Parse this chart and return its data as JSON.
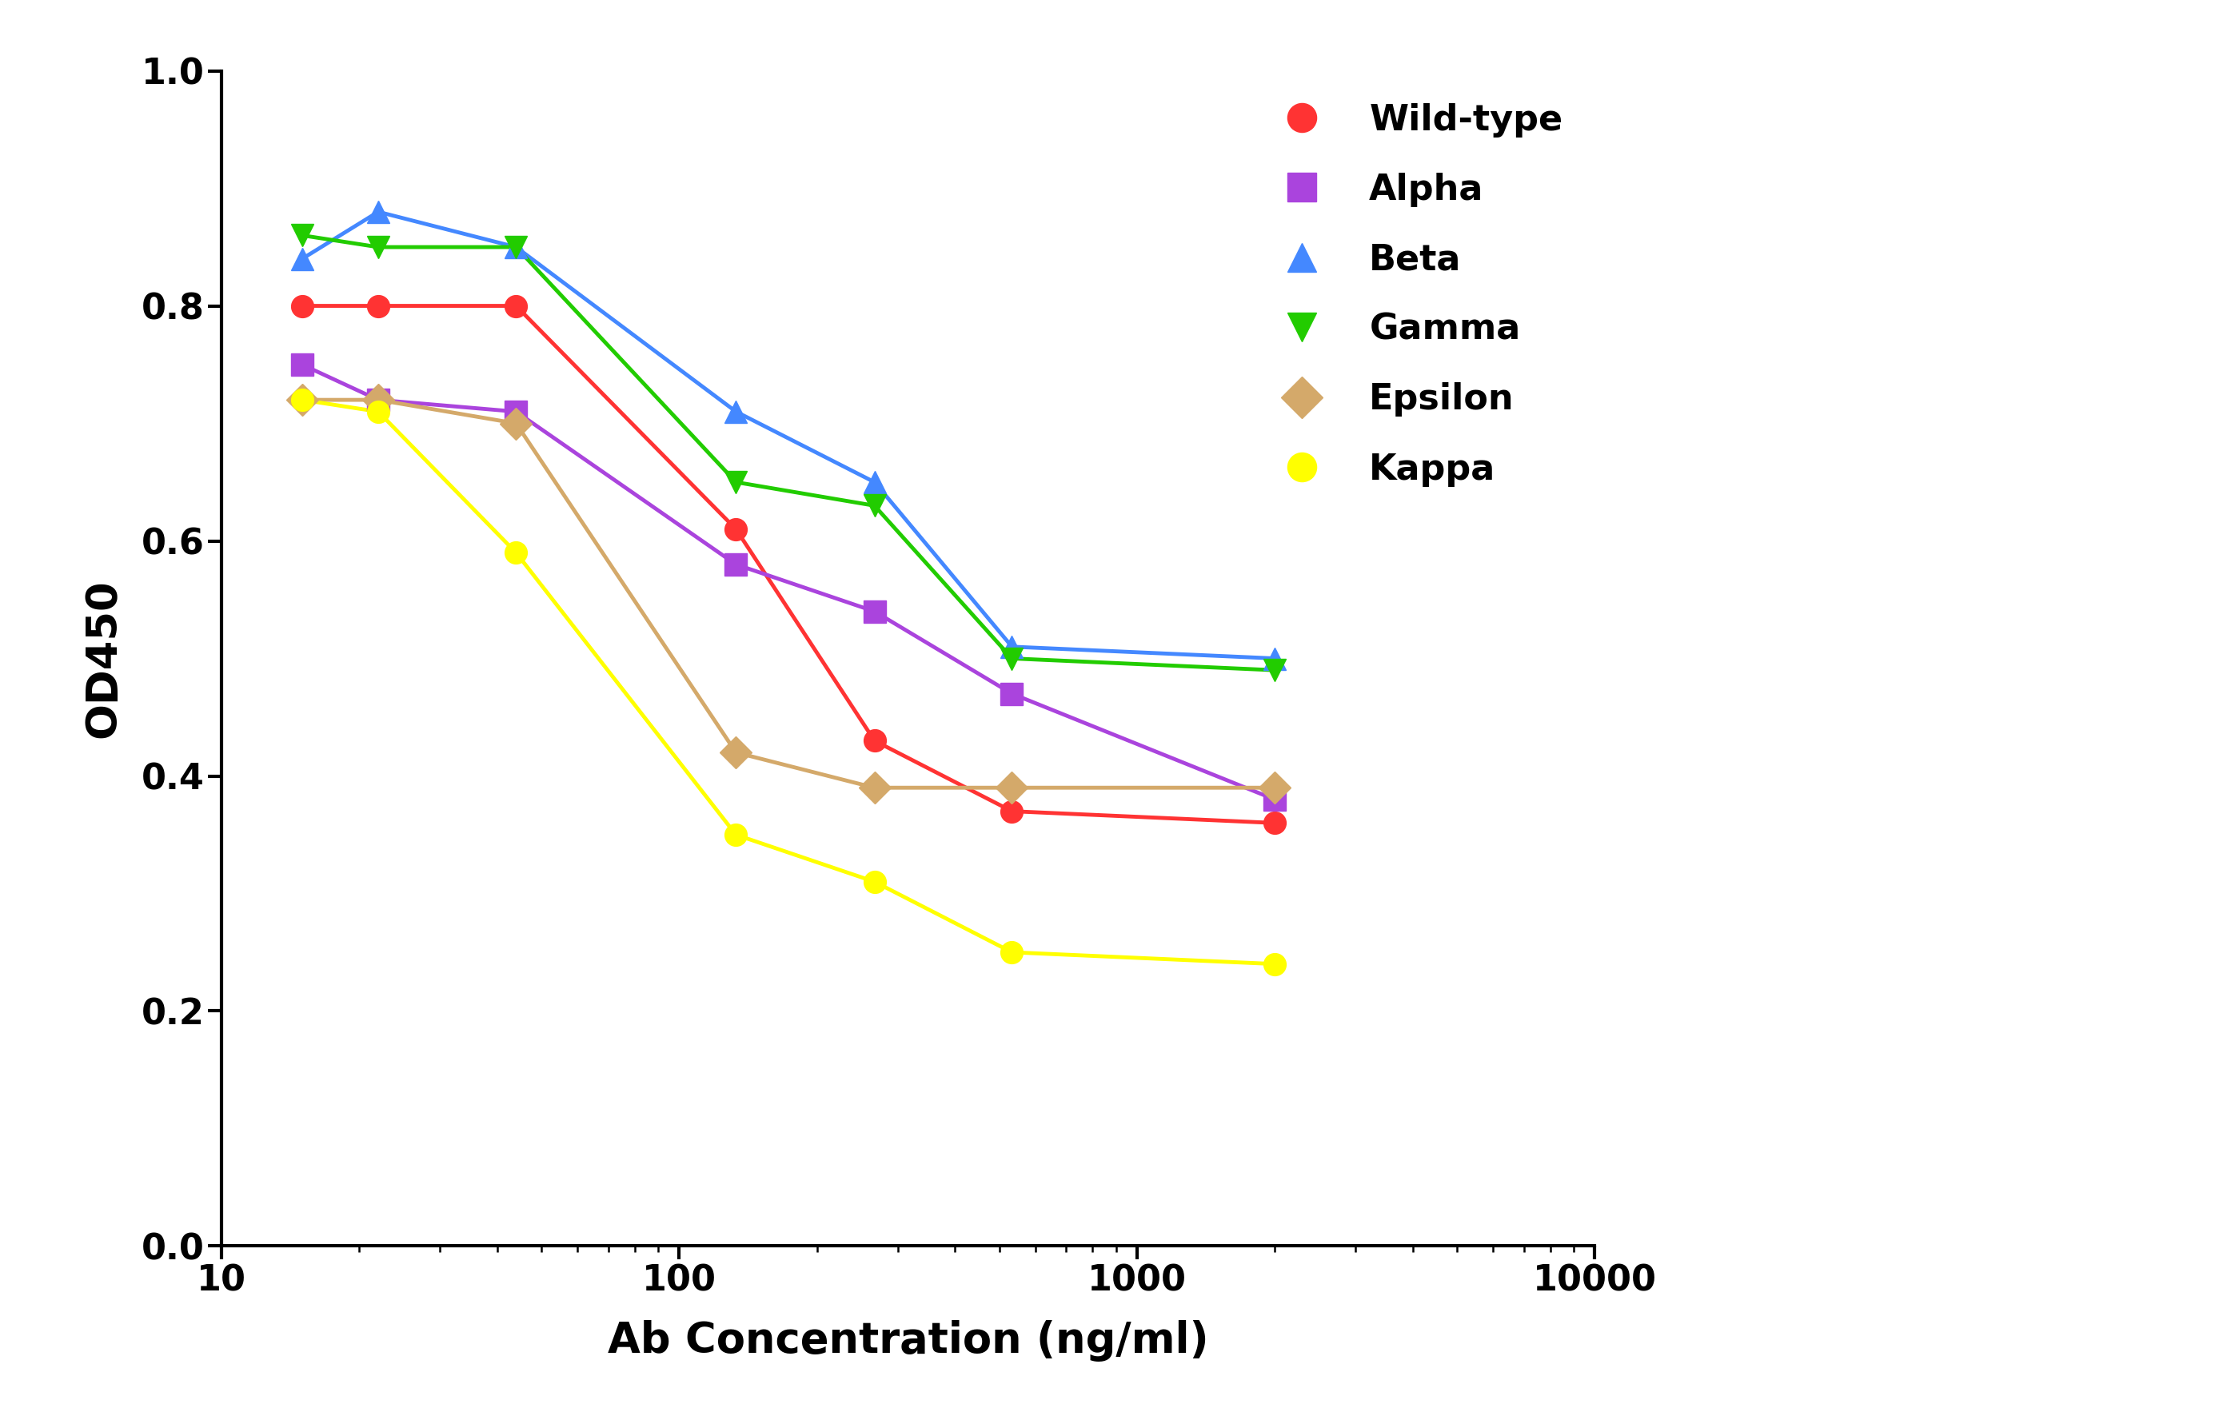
{
  "series": {
    "Wild-type": {
      "x": [
        15,
        22,
        44,
        133,
        267,
        533,
        2000
      ],
      "y": [
        0.8,
        0.8,
        0.8,
        0.61,
        0.43,
        0.37,
        0.36
      ],
      "color": "#FF3333",
      "marker": "o",
      "label": "Wild-type"
    },
    "Alpha": {
      "x": [
        15,
        22,
        44,
        133,
        267,
        533,
        2000
      ],
      "y": [
        0.75,
        0.72,
        0.71,
        0.58,
        0.54,
        0.47,
        0.38
      ],
      "color": "#AA44DD",
      "marker": "s",
      "label": "Alpha"
    },
    "Beta": {
      "x": [
        15,
        22,
        44,
        133,
        267,
        533,
        2000
      ],
      "y": [
        0.84,
        0.88,
        0.85,
        0.71,
        0.65,
        0.51,
        0.5
      ],
      "color": "#4488FF",
      "marker": "^",
      "label": "Beta"
    },
    "Gamma": {
      "x": [
        15,
        22,
        44,
        133,
        267,
        533,
        2000
      ],
      "y": [
        0.86,
        0.85,
        0.85,
        0.65,
        0.63,
        0.5,
        0.49
      ],
      "color": "#22CC00",
      "marker": "v",
      "label": "Gamma"
    },
    "Epsilon": {
      "x": [
        15,
        22,
        44,
        133,
        267,
        533,
        2000
      ],
      "y": [
        0.72,
        0.72,
        0.7,
        0.42,
        0.39,
        0.39,
        0.39
      ],
      "color": "#D4A96A",
      "marker": "D",
      "label": "Epsilon"
    },
    "Kappa": {
      "x": [
        15,
        22,
        44,
        133,
        267,
        533,
        2000
      ],
      "y": [
        0.72,
        0.71,
        0.59,
        0.35,
        0.31,
        0.25,
        0.24
      ],
      "color": "#FFFF00",
      "marker": "o",
      "label": "Kappa"
    }
  },
  "xlabel": "Ab Concentration (ng/ml)",
  "ylabel": "OD450",
  "xlim": [
    10,
    10000
  ],
  "ylim": [
    0.0,
    1.0
  ],
  "yticks": [
    0.0,
    0.2,
    0.4,
    0.6,
    0.8,
    1.0
  ],
  "background_color": "#FFFFFF",
  "legend_fontsize": 32,
  "axis_label_fontsize": 38,
  "tick_fontsize": 32,
  "marker_size": 20,
  "line_width": 3.5
}
